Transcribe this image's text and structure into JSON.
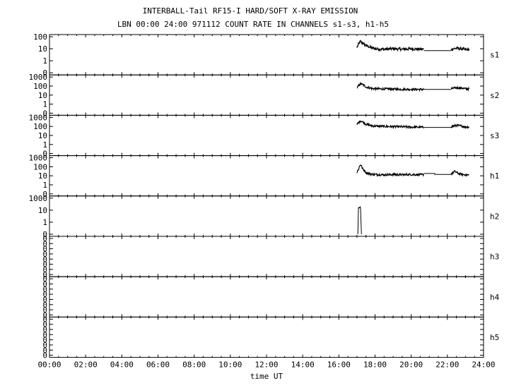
{
  "header": {
    "title": "INTERBALL-Tail RF15-I HARD/SOFT X-RAY EMISSION",
    "subtitle": "LBN 00:00 24:00 971112  COUNT RATE IN CHANNELS s1-s3, h1-h5"
  },
  "chart_data": {
    "type": "line",
    "xlabel": "time UT",
    "x_ticks": [
      "00:00",
      "02:00",
      "04:00",
      "06:00",
      "08:00",
      "10:00",
      "12:00",
      "14:00",
      "16:00",
      "18:00",
      "20:00",
      "22:00",
      "24:00"
    ],
    "xlim": [
      0,
      24
    ],
    "yscale": "log",
    "panels": [
      {
        "name": "s1",
        "y_ticks": [
          "100",
          "10",
          "1",
          "0"
        ],
        "series": [
          {
            "x": [
              17.0,
              17.1,
              17.2,
              17.3,
              17.5,
              17.8,
              18.0,
              18.5,
              19.0,
              19.5,
              20.0,
              20.5,
              20.7
            ],
            "y": [
              12,
              25,
              40,
              30,
              18,
              12,
              10,
              9,
              10,
              9,
              10,
              9,
              9
            ],
            "noisy": true
          },
          {
            "x": [
              20.7,
              22.2
            ],
            "y": [
              7,
              7
            ],
            "noisy": false
          },
          {
            "x": [
              22.2,
              22.5,
              22.8,
              23.0,
              23.2
            ],
            "y": [
              9,
              11,
              10,
              8,
              9
            ],
            "noisy": true
          }
        ]
      },
      {
        "name": "s2",
        "y_ticks": [
          "1000",
          "100",
          "10",
          "1",
          "0"
        ],
        "series": [
          {
            "x": [
              17.0,
              17.1,
              17.2,
              17.3,
              17.5,
              17.8,
              18.0,
              18.5,
              19.0,
              19.5,
              20.0,
              20.5,
              20.7
            ],
            "y": [
              60,
              110,
              180,
              150,
              80,
              55,
              50,
              48,
              46,
              44,
              44,
              43,
              42
            ],
            "noisy": true
          },
          {
            "x": [
              20.7,
              22.2
            ],
            "y": [
              42,
              42
            ],
            "noisy": false
          },
          {
            "x": [
              22.2,
              22.5,
              22.8,
              23.0,
              23.2
            ],
            "y": [
              50,
              65,
              60,
              50,
              48
            ],
            "noisy": true
          }
        ]
      },
      {
        "name": "s3",
        "y_ticks": [
          "1000",
          "100",
          "10",
          "1",
          "0"
        ],
        "series": [
          {
            "x": [
              17.0,
              17.1,
              17.2,
              17.3,
              17.5,
              17.8,
              18.0,
              18.5,
              19.0,
              19.5,
              20.0,
              20.5,
              20.7
            ],
            "y": [
              150,
              280,
              420,
              330,
              170,
              120,
              110,
              100,
              95,
              90,
              85,
              82,
              80
            ],
            "noisy": true
          },
          {
            "x": [
              20.7,
              22.2
            ],
            "y": [
              78,
              78
            ],
            "noisy": false
          },
          {
            "x": [
              22.2,
              22.5,
              22.8,
              23.0,
              23.2
            ],
            "y": [
              90,
              130,
              110,
              90,
              85
            ],
            "noisy": true
          }
        ]
      },
      {
        "name": "h1",
        "y_ticks": [
          "1000",
          "100",
          "10",
          "1",
          "0"
        ],
        "series": [
          {
            "x": [
              17.0,
              17.1,
              17.2,
              17.3,
              17.5,
              17.8,
              18.0,
              18.5,
              19.0,
              19.5,
              20.0,
              20.5,
              20.7
            ],
            "y": [
              20,
              60,
              180,
              60,
              22,
              15,
              14,
              13,
              14,
              13,
              14,
              13,
              14
            ],
            "noisy": true
          },
          {
            "x": [
              20.7,
              21.3,
              21.3,
              22.2
            ],
            "y": [
              18,
              18,
              14,
              14
            ],
            "noisy": false
          },
          {
            "x": [
              22.2,
              22.4,
              22.6,
              22.8,
              23.2
            ],
            "y": [
              15,
              30,
              18,
              14,
              12
            ],
            "noisy": true
          }
        ]
      },
      {
        "name": "h2",
        "y_ticks": [
          "1000",
          "10",
          "1",
          "0"
        ],
        "series": [
          {
            "x": [
              17.05,
              17.08,
              17.1,
              17.15,
              17.18,
              17.2,
              17.25
            ],
            "y": [
              0,
              50,
              70,
              60,
              80,
              50,
              0
            ],
            "noisy": false
          }
        ]
      },
      {
        "name": "h3",
        "y_ticks": [
          "0",
          "0",
          "0",
          "0",
          "0",
          "0",
          "0",
          "0"
        ],
        "series": []
      },
      {
        "name": "h4",
        "y_ticks": [
          "0",
          "0",
          "0",
          "0",
          "0",
          "0",
          "0",
          "0"
        ],
        "series": []
      },
      {
        "name": "h5",
        "y_ticks": [
          "0",
          "0",
          "0",
          "0",
          "0",
          "0",
          "0",
          "0"
        ],
        "series": []
      }
    ]
  }
}
